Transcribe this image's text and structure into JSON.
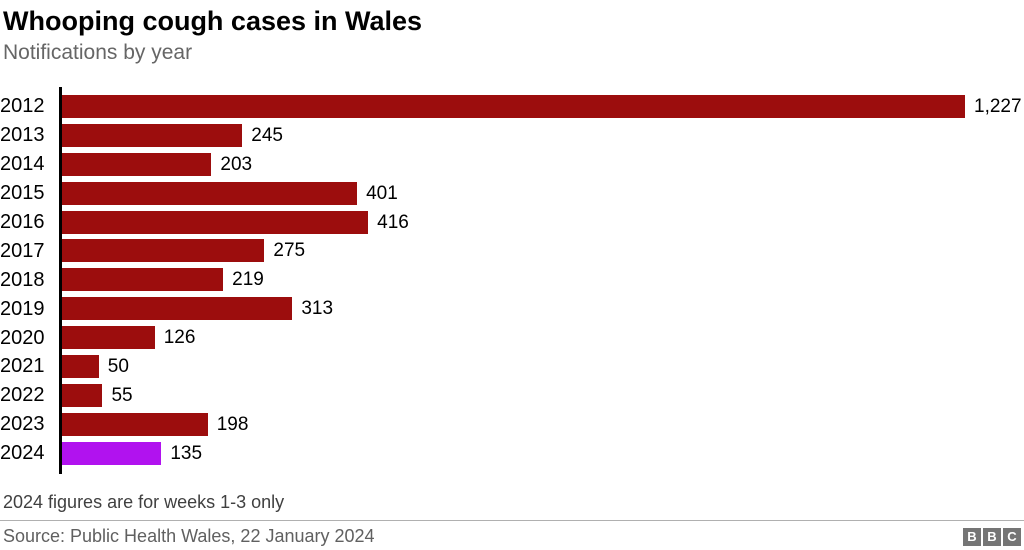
{
  "header": {
    "title": "Whooping cough cases in Wales",
    "subtitle": "Notifications by year"
  },
  "chart_data": {
    "type": "bar",
    "orientation": "horizontal",
    "title": "Whooping cough cases in Wales",
    "subtitle": "Notifications by year",
    "xlabel": "",
    "ylabel": "",
    "categories": [
      "2012",
      "2013",
      "2014",
      "2015",
      "2016",
      "2017",
      "2018",
      "2019",
      "2020",
      "2021",
      "2022",
      "2023",
      "2024"
    ],
    "values": [
      1227,
      245,
      203,
      401,
      416,
      275,
      219,
      313,
      126,
      50,
      55,
      198,
      135
    ],
    "value_labels": [
      "1,227",
      "245",
      "203",
      "401",
      "416",
      "275",
      "219",
      "313",
      "126",
      "50",
      "55",
      "198",
      "135"
    ],
    "max_value": 1227,
    "bar_color": "#9C0D0D",
    "highlight_color": "#B112EF",
    "highlight_category": "2024",
    "grid": false,
    "legend": false
  },
  "footer": {
    "note": "2024 figures are for weeks 1-3 only",
    "source": "Source: Public Health Wales, 22 January 2024",
    "logo_letters": [
      "B",
      "B",
      "C"
    ]
  }
}
